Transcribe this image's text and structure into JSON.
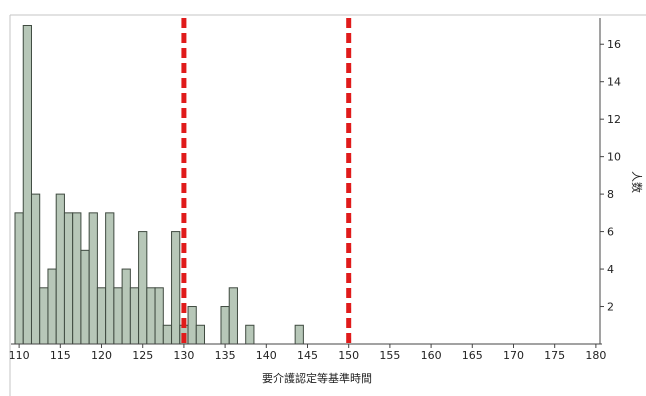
{
  "chart_data": {
    "type": "bar",
    "subtype": "histogram",
    "xlabel": "要介護認定等基準時間",
    "ylabel": "人数",
    "xlim": [
      109.5,
      180.5
    ],
    "ylim": [
      0,
      17.4
    ],
    "bin_width": 1,
    "x_ticks": [
      110,
      115,
      120,
      125,
      130,
      135,
      140,
      145,
      150,
      155,
      160,
      165,
      170,
      175,
      180
    ],
    "y_ticks": [
      2,
      4,
      6,
      8,
      10,
      12,
      14,
      16
    ],
    "y_axis_position": "right",
    "grid": false,
    "legend": "none",
    "bins": [
      {
        "x": 110,
        "count": 7
      },
      {
        "x": 111,
        "count": 17
      },
      {
        "x": 112,
        "count": 8
      },
      {
        "x": 113,
        "count": 3
      },
      {
        "x": 114,
        "count": 4
      },
      {
        "x": 115,
        "count": 8
      },
      {
        "x": 116,
        "count": 7
      },
      {
        "x": 117,
        "count": 7
      },
      {
        "x": 118,
        "count": 5
      },
      {
        "x": 119,
        "count": 7
      },
      {
        "x": 120,
        "count": 3
      },
      {
        "x": 121,
        "count": 7
      },
      {
        "x": 122,
        "count": 3
      },
      {
        "x": 123,
        "count": 4
      },
      {
        "x": 124,
        "count": 3
      },
      {
        "x": 125,
        "count": 6
      },
      {
        "x": 126,
        "count": 3
      },
      {
        "x": 127,
        "count": 3
      },
      {
        "x": 128,
        "count": 1
      },
      {
        "x": 129,
        "count": 6
      },
      {
        "x": 130,
        "count": 1
      },
      {
        "x": 131,
        "count": 2
      },
      {
        "x": 132,
        "count": 1
      },
      {
        "x": 135,
        "count": 2
      },
      {
        "x": 136,
        "count": 3
      },
      {
        "x": 138,
        "count": 1
      },
      {
        "x": 144,
        "count": 1
      }
    ],
    "reference_lines": [
      {
        "x": 130,
        "style": "dashed",
        "color": "#e01b1b"
      },
      {
        "x": 150,
        "style": "dashed",
        "color": "#e01b1b"
      }
    ],
    "colors": {
      "bar_fill": "#b7c7b8",
      "bar_stroke": "#3f4a40",
      "axis": "#444444"
    }
  }
}
